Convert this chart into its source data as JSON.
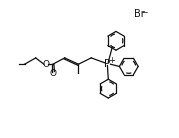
{
  "bg_color": "#ffffff",
  "line_color": "#111111",
  "lw": 0.9,
  "figsize": [
    1.79,
    1.38
  ],
  "dpi": 100,
  "xlim": [
    0,
    10
  ],
  "ylim": [
    0,
    8
  ],
  "font_P": 7.5,
  "font_O": 6.5,
  "font_Br": 7.0
}
